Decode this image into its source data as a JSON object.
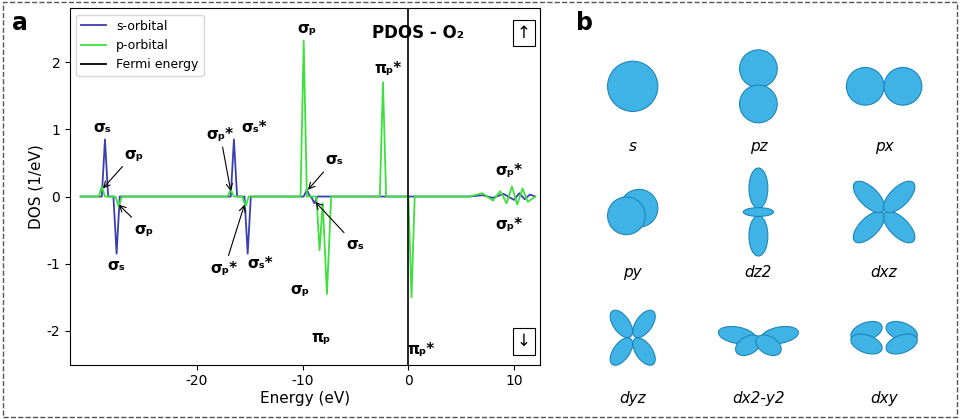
{
  "chart_data": {
    "type": "line",
    "title": "PDOS - O₂",
    "panel_label": "a",
    "x_label": "Energy (eV)",
    "y_label": "DOS (1/eV)",
    "xlim": [
      -32,
      12.5
    ],
    "xticks": [
      -20,
      -10,
      0,
      10
    ],
    "ylim": [
      -2.5,
      2.8
    ],
    "yticks": [
      -2,
      -1,
      0,
      1,
      2
    ],
    "legend": "upper left",
    "spin_labels": [
      "↑",
      "↓"
    ],
    "series": [
      {
        "name": "s-orbital",
        "color": "#3a3fb0",
        "x": [
          -31,
          -29.0,
          -28.7,
          -28.4,
          -27.9,
          -27.6,
          -27.3,
          -16.8,
          -16.5,
          -16.2,
          -15.5,
          -15.2,
          -14.9,
          -9.9,
          -9.6,
          -9.3,
          -9.2,
          -8.9,
          -8.6,
          5.8,
          7,
          8,
          9,
          10,
          10.5,
          11,
          11.5,
          12
        ],
        "values": [
          0,
          0,
          0.85,
          0,
          0,
          -0.85,
          0,
          0,
          0.85,
          0,
          0,
          -0.85,
          0,
          0,
          0.1,
          0,
          0,
          -0.1,
          0,
          0,
          0.02,
          -0.02,
          0.04,
          -0.05,
          0.05,
          -0.04,
          0.03,
          0
        ]
      },
      {
        "name": "p-orbital",
        "color": "#3ee03e",
        "x": [
          -31,
          -29.3,
          -29.0,
          -28.7,
          -27.7,
          -27.4,
          -27.1,
          -17.1,
          -16.8,
          -16.5,
          -15.7,
          -15.4,
          -15.1,
          -10.2,
          -9.9,
          -9.6,
          -8.7,
          -8.4,
          -8.1,
          -7.7,
          -7.3,
          -2.7,
          -2.4,
          -2.1,
          0,
          0.3,
          0.6,
          5.8,
          7,
          8,
          8.7,
          9.3,
          9.8,
          10.3,
          10.8,
          11.3,
          12
        ],
        "values": [
          0,
          0,
          0.15,
          0,
          0,
          -0.15,
          0,
          0,
          0.1,
          0,
          0,
          -0.15,
          0,
          0,
          2.32,
          0,
          0,
          -0.8,
          -0.1,
          -1.45,
          0,
          0,
          1.7,
          0,
          0,
          -1.5,
          0,
          0,
          0.05,
          -0.06,
          0.08,
          -0.1,
          0.15,
          -0.12,
          0.12,
          -0.08,
          0
        ]
      },
      {
        "name": "Fermi energy",
        "color": "#000000",
        "type": "vline",
        "x": 0
      }
    ],
    "annotations": [
      {
        "text": "σₛ",
        "x": -29.0,
        "y": 1.03
      },
      {
        "text": "σₚ",
        "x": -26.0,
        "y": 0.63,
        "xy": [
          -28.9,
          0.12
        ]
      },
      {
        "text": "σₚ",
        "x": -25.0,
        "y": -0.49,
        "xy": [
          -27.4,
          -0.12
        ]
      },
      {
        "text": "σₛ",
        "x": -27.6,
        "y": -1.02
      },
      {
        "text": "σₚ*",
        "x": -17.8,
        "y": 0.93,
        "xy": [
          -16.8,
          0.08
        ]
      },
      {
        "text": "σₛ*",
        "x": -14.6,
        "y": 1.03
      },
      {
        "text": "σₚ*",
        "x": -17.4,
        "y": -1.07,
        "xy": [
          -15.5,
          -0.12
        ]
      },
      {
        "text": "σₛ*",
        "x": -14.0,
        "y": -1.0
      },
      {
        "text": "σₚ",
        "x": -9.6,
        "y": 2.5
      },
      {
        "text": "σₛ",
        "x": -7.0,
        "y": 0.55,
        "xy": [
          -9.5,
          0.1
        ]
      },
      {
        "text": "σₛ",
        "x": -5.0,
        "y": -0.72,
        "xy": [
          -8.8,
          -0.08
        ]
      },
      {
        "text": "σₚ",
        "x": -10.3,
        "y": -1.39
      },
      {
        "text": "πₚ",
        "x": -8.3,
        "y": -2.1
      },
      {
        "text": "πₚ*",
        "x": -1.9,
        "y": 1.9
      },
      {
        "text": "πₚ*",
        "x": 1.2,
        "y": -2.28
      },
      {
        "text": "σₚ*",
        "x": 9.5,
        "y": 0.38
      },
      {
        "text": "σₚ*",
        "x": 9.5,
        "y": -0.42
      }
    ]
  },
  "orbitals": {
    "panel_label": "b",
    "labels": [
      "s",
      "pz",
      "px",
      "py",
      "dz2",
      "dxz",
      "dyz",
      "dx2-y2",
      "dxy"
    ]
  }
}
